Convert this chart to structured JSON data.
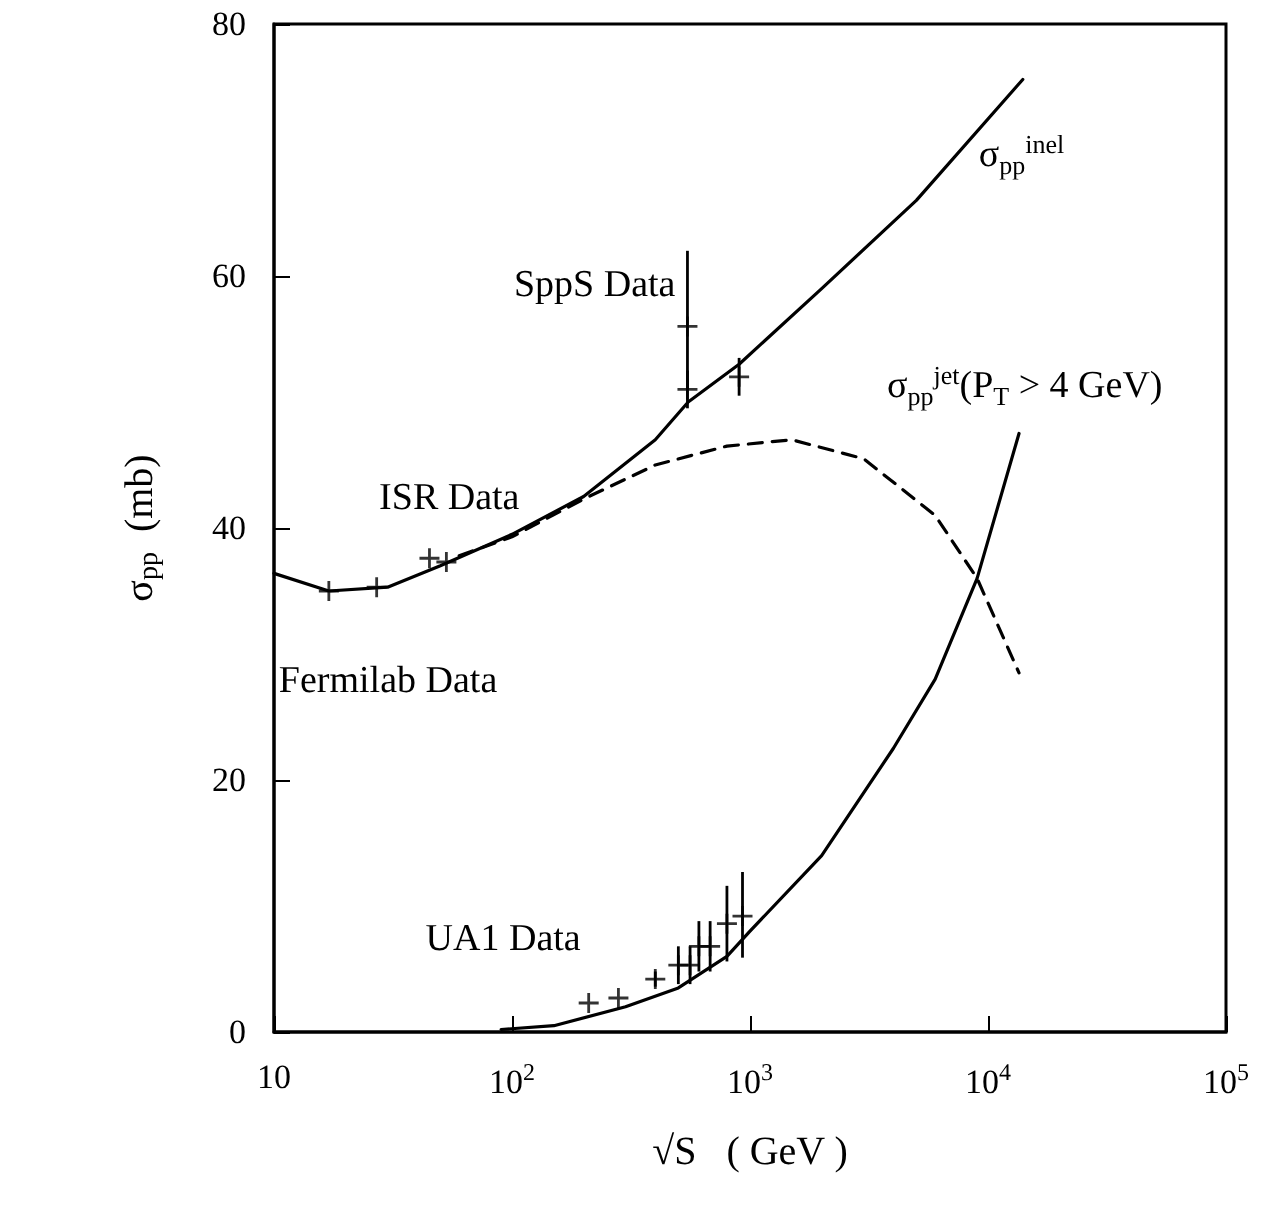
{
  "chart_data": {
    "type": "line",
    "xlabel": "√S   ( GeV )",
    "ylabel": "σ$_{pp}$  (mb)",
    "log": "x",
    "xlim": [
      10,
      100000
    ],
    "xticks": [
      10,
      {
        "value": 100,
        "label": "10$^{2}$"
      },
      {
        "value": 1000,
        "label": "10$^{3}$"
      },
      {
        "value": 10000,
        "label": "10$^{4}$"
      },
      {
        "value": 100000,
        "label": "10$^{5}$"
      }
    ],
    "ylim": [
      0,
      80
    ],
    "yticks": [
      0,
      20,
      40,
      60,
      80
    ],
    "grid": false,
    "series": [
      {
        "name": "σ$_{pp}$$^{inel}$",
        "color": "#000000",
        "marker": "none",
        "line_style": "solid",
        "x": [
          10,
          17,
          30,
          50,
          100,
          200,
          400,
          550,
          900,
          2000,
          5000,
          14000
        ],
        "values": [
          36.4,
          35,
          35.3,
          37,
          39.5,
          42.5,
          47,
          50,
          53,
          59,
          66,
          75.6
        ]
      },
      {
        "color": "#000000",
        "marker": "none",
        "line_style": "dashed",
        "x": [
          60,
          100,
          200,
          400,
          800,
          1500,
          3000,
          6000,
          9000,
          13500
        ],
        "values": [
          37.8,
          39.3,
          42.3,
          45,
          46.5,
          47,
          45.5,
          41,
          36,
          28.5
        ]
      },
      {
        "name": "σ$_{pp}$$^{jet}$(P$_{T}$ > 4 GeV)",
        "color": "#000000",
        "marker": "none",
        "line_style": "solid",
        "x": [
          90,
          150,
          300,
          500,
          800,
          1000,
          2000,
          4000,
          6000,
          9000,
          13500
        ],
        "values": [
          0.2,
          0.5,
          2,
          3.5,
          6,
          8,
          14,
          22.5,
          28,
          36,
          47.5
        ]
      },
      {
        "name": "Fermilab Data",
        "type": "scatter",
        "color": "#000000",
        "marker": "cross",
        "x": [
          17,
          27
        ],
        "values": [
          35,
          35.3
        ]
      },
      {
        "name": "ISR Data",
        "type": "scatter",
        "color": "#000000",
        "marker": "cross",
        "x": [
          45,
          53
        ],
        "values": [
          37.6,
          37.3
        ]
      },
      {
        "name": "SppS Data",
        "type": "scatter",
        "color": "#000000",
        "marker": "cross",
        "x": [
          546,
          546,
          900
        ],
        "values": [
          51,
          56,
          52
        ],
        "errors": [
          1.5,
          [
            51,
            62
          ],
          1.5
        ]
      },
      {
        "name": "UA1 Data",
        "type": "scatter",
        "color": "#000000",
        "marker": "cross",
        "x": [
          210,
          280,
          400,
          500,
          560,
          610,
          680,
          800,
          930
        ],
        "values": [
          2.3,
          2.7,
          4.2,
          5.3,
          5.3,
          6.8,
          6.8,
          8.6,
          9.2
        ],
        "errors": [
          null,
          null,
          0.6,
          1.5,
          1.5,
          2,
          2,
          3,
          [
            5.9,
            12.7
          ]
        ]
      }
    ]
  }
}
